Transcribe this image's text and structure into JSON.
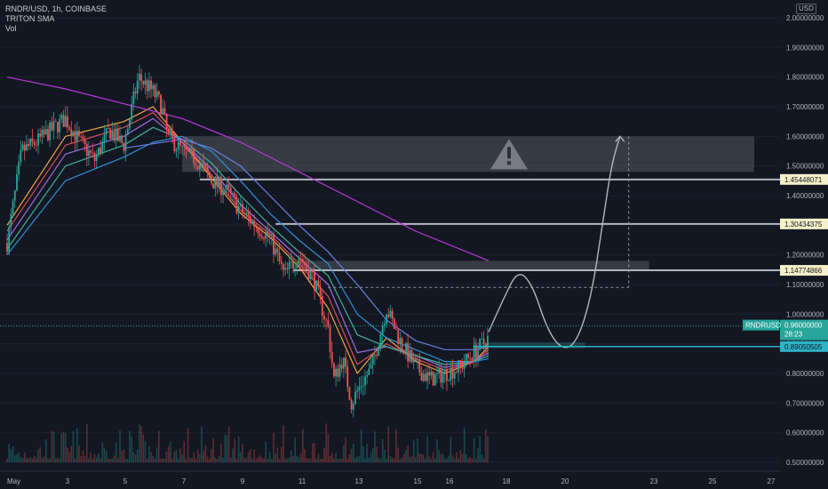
{
  "header": {
    "symbol_line": "RNDR/USD, 1h, COINBASE",
    "indicator_line": "TRITON SMA",
    "volume_line": "Vol",
    "currency": "USD"
  },
  "chart_data": {
    "type": "candlestick",
    "title": "RNDR/USD, 1h, COINBASE",
    "ylim": [
      0.5,
      2.0
    ],
    "y_ticks": [
      "2.00000000",
      "1.90000000",
      "1.80000000",
      "1.70000000",
      "1.60000000",
      "1.50000000",
      "1.40000000",
      "1.30000000",
      "1.20000000",
      "1.10000000",
      "1.00000000",
      "0.90000000",
      "0.80000000",
      "0.70000000",
      "0.60000000",
      "0.50000000"
    ],
    "x_ticks": [
      "May",
      "3",
      "5",
      "7",
      "9",
      "11",
      "13",
      "15",
      "16",
      "18",
      "20",
      "23",
      "25",
      "27"
    ],
    "close_path": [
      {
        "t": 0,
        "v": 1.24
      },
      {
        "t": 0.5,
        "v": 1.55
      },
      {
        "t": 1,
        "v": 1.58
      },
      {
        "t": 1.5,
        "v": 1.62
      },
      {
        "t": 2,
        "v": 1.66
      },
      {
        "t": 2.5,
        "v": 1.58
      },
      {
        "t": 3,
        "v": 1.52
      },
      {
        "t": 3.5,
        "v": 1.62
      },
      {
        "t": 4,
        "v": 1.57
      },
      {
        "t": 4.5,
        "v": 1.8
      },
      {
        "t": 5,
        "v": 1.75
      },
      {
        "t": 5.3,
        "v": 1.7
      },
      {
        "t": 5.5,
        "v": 1.6
      },
      {
        "t": 6,
        "v": 1.55
      },
      {
        "t": 6.5,
        "v": 1.52
      },
      {
        "t": 7,
        "v": 1.45
      },
      {
        "t": 7.5,
        "v": 1.42
      },
      {
        "t": 8,
        "v": 1.35
      },
      {
        "t": 8.5,
        "v": 1.3
      },
      {
        "t": 9,
        "v": 1.26
      },
      {
        "t": 9.5,
        "v": 1.13
      },
      {
        "t": 10,
        "v": 1.2
      },
      {
        "t": 10.5,
        "v": 1.12
      },
      {
        "t": 11,
        "v": 0.95
      },
      {
        "t": 11.2,
        "v": 0.78
      },
      {
        "t": 11.5,
        "v": 0.85
      },
      {
        "t": 11.8,
        "v": 0.7
      },
      {
        "t": 12.1,
        "v": 0.76
      },
      {
        "t": 12.5,
        "v": 0.82
      },
      {
        "t": 13,
        "v": 1.02
      },
      {
        "t": 13.5,
        "v": 0.9
      },
      {
        "t": 14,
        "v": 0.82
      },
      {
        "t": 14.5,
        "v": 0.78
      },
      {
        "t": 15,
        "v": 0.8
      },
      {
        "t": 15.5,
        "v": 0.82
      },
      {
        "t": 16,
        "v": 0.87
      },
      {
        "t": 16.5,
        "v": 0.92
      }
    ],
    "moving_averages": [
      {
        "name": "ma-fast",
        "color": "#f4a641",
        "points": [
          [
            0,
            1.3
          ],
          [
            2,
            1.6
          ],
          [
            4,
            1.65
          ],
          [
            5,
            1.7
          ],
          [
            6,
            1.58
          ],
          [
            7,
            1.46
          ],
          [
            8,
            1.34
          ],
          [
            9,
            1.26
          ],
          [
            10,
            1.16
          ],
          [
            11,
            1.02
          ],
          [
            12,
            0.8
          ],
          [
            13,
            0.92
          ],
          [
            14,
            0.84
          ],
          [
            15,
            0.8
          ],
          [
            16,
            0.84
          ],
          [
            16.5,
            0.89
          ]
        ]
      },
      {
        "name": "ma-2",
        "color": "#d94b5b",
        "points": [
          [
            0,
            1.28
          ],
          [
            2,
            1.57
          ],
          [
            4,
            1.63
          ],
          [
            5,
            1.68
          ],
          [
            6,
            1.58
          ],
          [
            7,
            1.47
          ],
          [
            8,
            1.35
          ],
          [
            9,
            1.27
          ],
          [
            10,
            1.17
          ],
          [
            11,
            1.06
          ],
          [
            12,
            0.83
          ],
          [
            13,
            0.9
          ],
          [
            14,
            0.85
          ],
          [
            15,
            0.81
          ],
          [
            16,
            0.84
          ],
          [
            16.5,
            0.88
          ]
        ]
      },
      {
        "name": "ma-3",
        "color": "#9c6be0",
        "points": [
          [
            0,
            1.25
          ],
          [
            2,
            1.54
          ],
          [
            4,
            1.6
          ],
          [
            5,
            1.66
          ],
          [
            6,
            1.58
          ],
          [
            7,
            1.49
          ],
          [
            8,
            1.37
          ],
          [
            9,
            1.28
          ],
          [
            10,
            1.19
          ],
          [
            11,
            1.1
          ],
          [
            12,
            0.87
          ],
          [
            13,
            0.89
          ],
          [
            14,
            0.86
          ],
          [
            15,
            0.82
          ],
          [
            16,
            0.84
          ],
          [
            16.5,
            0.87
          ]
        ]
      },
      {
        "name": "ma-4",
        "color": "#3fb0a0",
        "points": [
          [
            0,
            1.22
          ],
          [
            2,
            1.5
          ],
          [
            4,
            1.57
          ],
          [
            5,
            1.63
          ],
          [
            6,
            1.59
          ],
          [
            7,
            1.51
          ],
          [
            8,
            1.4
          ],
          [
            9,
            1.3
          ],
          [
            10,
            1.21
          ],
          [
            11,
            1.13
          ],
          [
            12,
            0.93
          ],
          [
            13,
            0.89
          ],
          [
            14,
            0.86
          ],
          [
            15,
            0.83
          ],
          [
            16,
            0.84
          ],
          [
            16.5,
            0.86
          ]
        ]
      },
      {
        "name": "ma-5",
        "color": "#2f8fd6",
        "points": [
          [
            0,
            1.2
          ],
          [
            2,
            1.45
          ],
          [
            4,
            1.53
          ],
          [
            5,
            1.58
          ],
          [
            6,
            1.6
          ],
          [
            7,
            1.55
          ],
          [
            8,
            1.45
          ],
          [
            9,
            1.34
          ],
          [
            10,
            1.25
          ],
          [
            11,
            1.17
          ],
          [
            12,
            1.0
          ],
          [
            13,
            0.92
          ],
          [
            14,
            0.88
          ],
          [
            15,
            0.84
          ],
          [
            16,
            0.84
          ],
          [
            16.5,
            0.85
          ]
        ]
      },
      {
        "name": "ma-6",
        "color": "#6d7fe0",
        "points": [
          [
            4,
            1.56
          ],
          [
            6,
            1.59
          ],
          [
            7,
            1.56
          ],
          [
            8,
            1.5
          ],
          [
            9,
            1.4
          ],
          [
            10,
            1.3
          ],
          [
            11,
            1.21
          ],
          [
            12,
            1.1
          ],
          [
            13,
            0.98
          ],
          [
            14,
            0.91
          ],
          [
            15,
            0.88
          ],
          [
            16,
            0.88
          ],
          [
            16.5,
            0.89
          ]
        ]
      },
      {
        "name": "ma-slow",
        "color": "#b73ad6",
        "points": [
          [
            0,
            1.8
          ],
          [
            2,
            1.76
          ],
          [
            4,
            1.71
          ],
          [
            6,
            1.66
          ],
          [
            8,
            1.58
          ],
          [
            10,
            1.48
          ],
          [
            12,
            1.38
          ],
          [
            14,
            1.28
          ],
          [
            16,
            1.2
          ],
          [
            16.5,
            1.18
          ]
        ]
      }
    ],
    "zones": [
      {
        "name": "upper-supply-zone",
        "y_top": 1.6,
        "y_bottom": 1.48,
        "t_start": 6,
        "t_end": 25.6
      },
      {
        "name": "mid-zone",
        "y_top": 1.18,
        "y_bottom": 1.15,
        "t_start": 10,
        "t_end": 22
      },
      {
        "name": "demand-zone",
        "y_top": 0.905,
        "y_bottom": 0.885,
        "t_start": 16,
        "t_end": 19.8
      }
    ],
    "levels": [
      {
        "name": "level-1454",
        "value": 1.45448071,
        "label": "1.45448071",
        "t_start": 6.6
      },
      {
        "name": "level-1304",
        "value": 1.30434375,
        "label": "1.30434375",
        "t_start": 9.2
      },
      {
        "name": "level-1147",
        "value": 1.14774866,
        "label": "1.14774866",
        "t_start": 9.8
      }
    ],
    "projection": [
      [
        16.5,
        0.94
      ],
      [
        17,
        1.05
      ],
      [
        17.5,
        1.15
      ],
      [
        18,
        1.1
      ],
      [
        18.5,
        0.95
      ],
      [
        19,
        0.88
      ],
      [
        19.5,
        0.9
      ],
      [
        20,
        1.05
      ],
      [
        20.4,
        1.3
      ],
      [
        20.7,
        1.5
      ],
      [
        21,
        1.6
      ]
    ],
    "measure_box": {
      "t_start": 11,
      "t_end": 21.3,
      "y_top": 1.6,
      "y_bottom": 1.09
    },
    "price_marker": {
      "symbol": "RNDRUSD",
      "price": "0.96000000",
      "countdown": "28:23",
      "value": 0.96
    },
    "support_marker": {
      "label": "0.89050505",
      "value": 0.8905
    },
    "colors": {
      "up": "#26a69a",
      "down": "#ef5350",
      "background": "#131722",
      "level": "#d1d4dc",
      "warning": "#787b86"
    }
  }
}
